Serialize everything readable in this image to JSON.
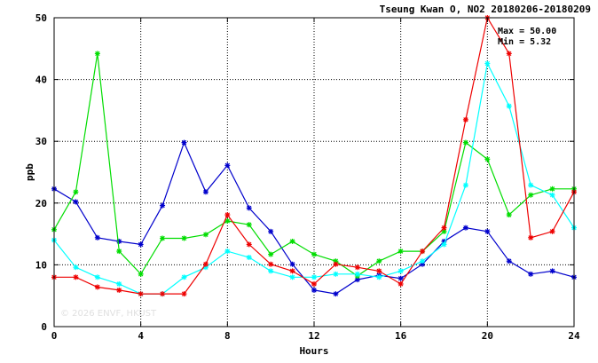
{
  "chart_data": {
    "type": "line",
    "title": "Tseung Kwan O, NO2 20180206-20180209",
    "xlabel": "Hours",
    "ylabel": "ppb",
    "xlim": [
      0,
      24
    ],
    "ylim": [
      0,
      50
    ],
    "xticks": [
      0,
      4,
      8,
      12,
      16,
      20,
      24
    ],
    "yticks": [
      0,
      10,
      20,
      30,
      40,
      50
    ],
    "grid": true,
    "stats": {
      "max_label": "Max = 50.00",
      "min_label": "Min =  5.32"
    },
    "watermark": "© 2026 ENVF, HKUST",
    "x": [
      0,
      1,
      2,
      3,
      4,
      5,
      6,
      7,
      8,
      9,
      10,
      11,
      12,
      13,
      14,
      15,
      16,
      17,
      18,
      19,
      20,
      21,
      22,
      23,
      24
    ],
    "series": [
      {
        "color": "#0000cc",
        "values": [
          22.3,
          20.2,
          14.4,
          13.8,
          13.3,
          19.6,
          29.8,
          21.8,
          26.1,
          19.2,
          15.4,
          10.1,
          5.9,
          5.3,
          7.6,
          8.3,
          7.8,
          10.1,
          13.8,
          16.0,
          15.4,
          10.6,
          8.5,
          9.0,
          8.0
        ]
      },
      {
        "color": "#00dd00",
        "values": [
          15.7,
          21.8,
          44.2,
          12.2,
          8.5,
          14.3,
          14.3,
          14.9,
          17.1,
          16.5,
          11.7,
          13.8,
          11.7,
          10.6,
          8.2,
          10.6,
          12.2,
          12.2,
          15.4,
          29.8,
          27.1,
          18.1,
          21.3,
          22.3,
          22.3
        ]
      },
      {
        "color": "#00ffff",
        "values": [
          14.0,
          9.6,
          8.0,
          6.9,
          5.3,
          5.3,
          8.0,
          9.6,
          12.2,
          11.2,
          9.0,
          8.0,
          8.0,
          8.5,
          8.5,
          8.0,
          9.0,
          10.6,
          13.3,
          22.9,
          42.6,
          35.7,
          22.9,
          21.3,
          16.0
        ]
      },
      {
        "color": "#ee0000",
        "values": [
          8.0,
          8.0,
          6.4,
          5.9,
          5.3,
          5.3,
          5.3,
          10.1,
          18.1,
          13.3,
          10.1,
          9.0,
          6.9,
          10.1,
          9.6,
          9.0,
          6.9,
          12.2,
          16.0,
          33.5,
          50.0,
          44.2,
          14.4,
          15.4,
          21.8
        ]
      }
    ]
  }
}
